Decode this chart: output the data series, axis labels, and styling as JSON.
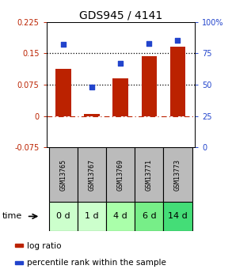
{
  "title": "GDS945 / 4141",
  "samples": [
    "GSM13765",
    "GSM13767",
    "GSM13769",
    "GSM13771",
    "GSM13773"
  ],
  "time_labels": [
    "0 d",
    "1 d",
    "4 d",
    "6 d",
    "14 d"
  ],
  "log_ratios": [
    0.113,
    0.005,
    0.09,
    0.143,
    0.165
  ],
  "percentile_ranks": [
    82,
    48,
    67,
    83,
    85
  ],
  "bar_color": "#bb2200",
  "dot_color": "#2244cc",
  "ylim_left": [
    -0.075,
    0.225
  ],
  "ylim_right": [
    0,
    100
  ],
  "yticks_left": [
    -0.075,
    0,
    0.075,
    0.15,
    0.225
  ],
  "ytick_labels_left": [
    "-0.075",
    "0",
    "0.075",
    "0.15",
    "0.225"
  ],
  "yticks_right": [
    0,
    25,
    50,
    75,
    100
  ],
  "ytick_labels_right": [
    "0",
    "25",
    "50",
    "75",
    "100%"
  ],
  "hline_y": [
    0.075,
    0.15
  ],
  "zero_line_y": 0,
  "background_color": "#ffffff",
  "sample_box_color": "#bbbbbb",
  "time_box_colors": [
    "#ccffcc",
    "#ccffcc",
    "#aaffaa",
    "#77ee88",
    "#44dd77"
  ],
  "bar_width": 0.55,
  "title_fontsize": 10,
  "tick_fontsize": 7,
  "sample_fontsize": 6,
  "time_fontsize": 8,
  "legend_fontsize": 7.5
}
